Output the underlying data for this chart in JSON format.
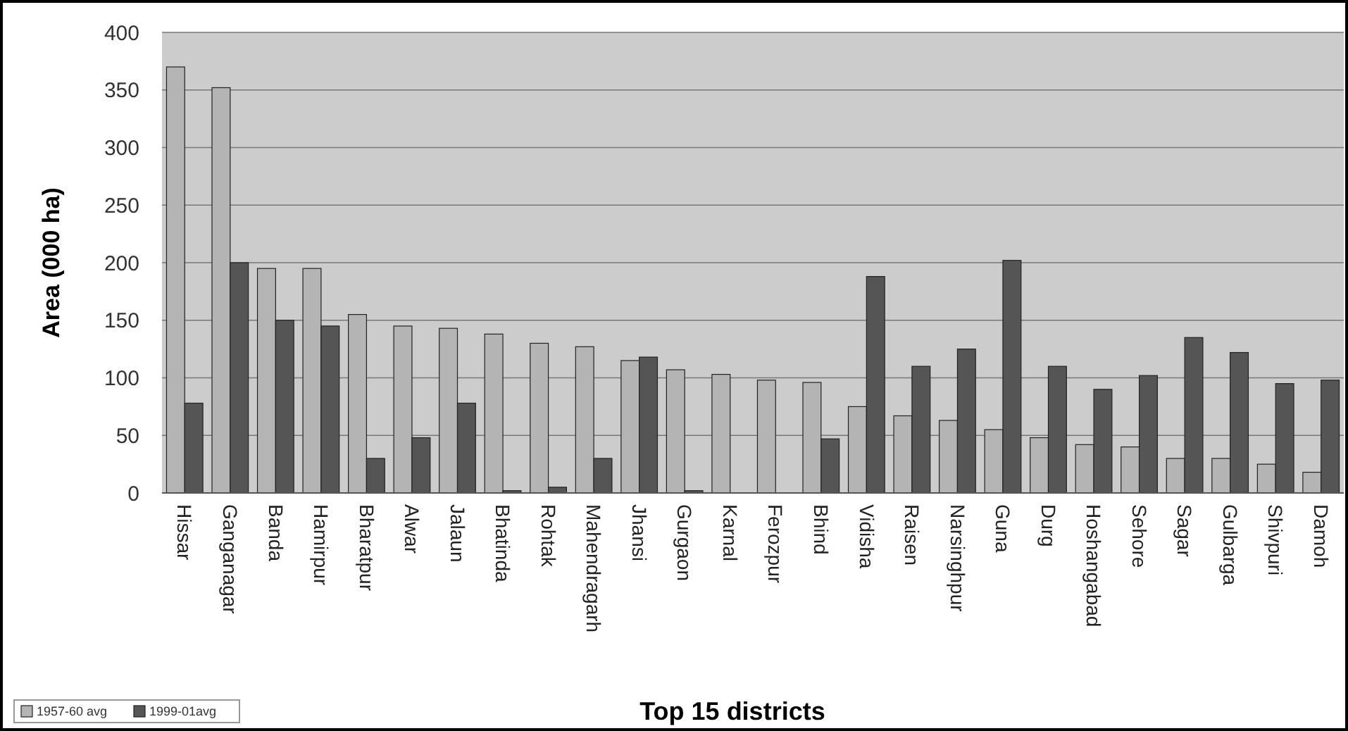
{
  "chart_data": {
    "type": "bar",
    "xlabel": "Top 15 districts",
    "ylabel": "Area (000 ha)",
    "categories": [
      "Hissar",
      "Ganganagar",
      "Banda",
      "Hamirpur",
      "Bharatpur",
      "Alwar",
      "Jalaun",
      "Bhatinda",
      "Rohtak",
      "Mahendragarh",
      "Jhansi",
      "Gurgaon",
      "Karnal",
      "Ferozpur",
      "Bhind",
      "Vidisha",
      "Raisen",
      "Narsinghpur",
      "Guna",
      "Durg",
      "Hoshangabad",
      "Sehore",
      "Sagar",
      "Gulbarga",
      "Shivpuri",
      "Damoh"
    ],
    "series": [
      {
        "name": "1957-60 avg",
        "color": "#b4b4b4",
        "values": [
          370,
          352,
          195,
          195,
          155,
          145,
          143,
          138,
          130,
          127,
          115,
          107,
          103,
          98,
          96,
          75,
          67,
          63,
          55,
          48,
          42,
          40,
          30,
          30,
          25,
          18
        ]
      },
      {
        "name": "1999-01avg",
        "color": "#555555",
        "values": [
          78,
          200,
          150,
          145,
          30,
          48,
          78,
          2,
          5,
          30,
          118,
          2,
          null,
          null,
          47,
          188,
          110,
          125,
          202,
          110,
          90,
          102,
          135,
          122,
          95,
          98
        ]
      }
    ],
    "ylim": [
      0,
      400
    ],
    "yticks": [
      0,
      50,
      100,
      150,
      200,
      250,
      300,
      350,
      400
    ],
    "grid": "y",
    "legend": "bottom left"
  }
}
